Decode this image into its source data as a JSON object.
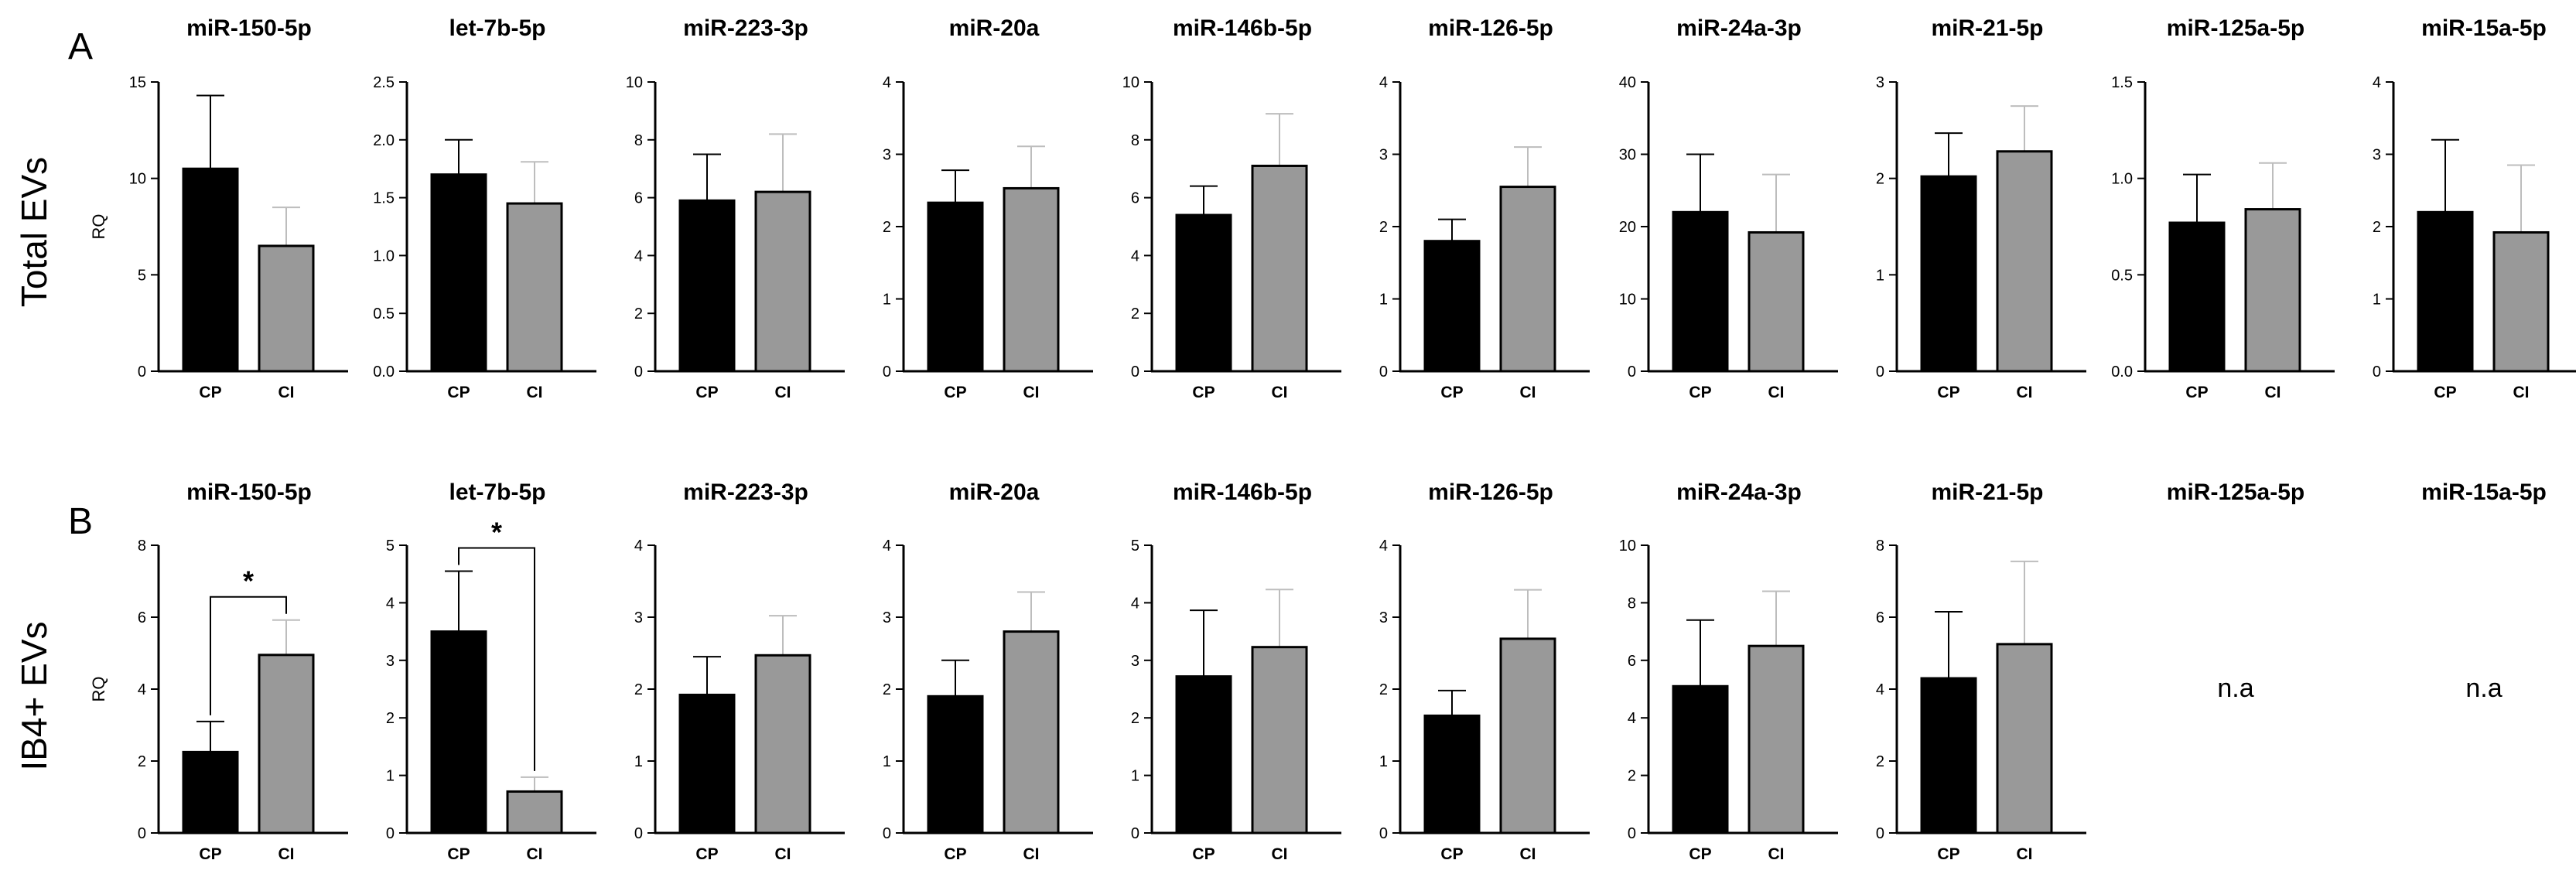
{
  "figure": {
    "panel_labels": [
      "A",
      "B"
    ],
    "row_labels": [
      "Total EVs",
      "IB4+ EVs"
    ],
    "y_axis_label": "RQ",
    "na_text": "n.a"
  },
  "chart_data": [
    {
      "panel": "A",
      "type": "bar",
      "title": "miR-150-5p",
      "categories": [
        "CP",
        "CI"
      ],
      "values": [
        10.5,
        6.5
      ],
      "errors": [
        3.8,
        2.0
      ],
      "colors": [
        "#000000",
        "#999999"
      ],
      "ylim": [
        0,
        15
      ],
      "yticks": [
        0,
        5,
        10,
        15
      ],
      "ytick_labels": [
        "0",
        "5",
        "10",
        "15"
      ],
      "ylabel": "RQ"
    },
    {
      "panel": "A",
      "type": "bar",
      "title": "let-7b-5p",
      "categories": [
        "CP",
        "CI"
      ],
      "values": [
        1.7,
        1.45
      ],
      "errors": [
        0.3,
        0.36
      ],
      "colors": [
        "#000000",
        "#999999"
      ],
      "ylim": [
        0,
        2.5
      ],
      "yticks": [
        0,
        0.5,
        1,
        1.5,
        2,
        2.5
      ],
      "ytick_labels": [
        "0.0",
        "0.5",
        "1.0",
        "1.5",
        "2.0",
        "2.5"
      ],
      "ylabel": ""
    },
    {
      "panel": "A",
      "type": "bar",
      "title": "miR-223-3p",
      "categories": [
        "CP",
        "CI"
      ],
      "values": [
        5.9,
        6.2
      ],
      "errors": [
        1.6,
        2.0
      ],
      "colors": [
        "#000000",
        "#999999"
      ],
      "ylim": [
        0,
        10
      ],
      "yticks": [
        0,
        2,
        4,
        6,
        8,
        10
      ],
      "ytick_labels": [
        "0",
        "2",
        "4",
        "6",
        "8",
        "10"
      ],
      "ylabel": ""
    },
    {
      "panel": "A",
      "type": "bar",
      "title": "miR-20a",
      "categories": [
        "CP",
        "CI"
      ],
      "values": [
        2.33,
        2.53
      ],
      "errors": [
        0.45,
        0.58
      ],
      "colors": [
        "#000000",
        "#999999"
      ],
      "ylim": [
        0,
        4
      ],
      "yticks": [
        0,
        1,
        2,
        3,
        4
      ],
      "ytick_labels": [
        "0",
        "1",
        "2",
        "3",
        "4"
      ],
      "ylabel": ""
    },
    {
      "panel": "A",
      "type": "bar",
      "title": "miR-146b-5p",
      "categories": [
        "CP",
        "CI"
      ],
      "values": [
        5.4,
        7.1
      ],
      "errors": [
        1.0,
        1.8
      ],
      "colors": [
        "#000000",
        "#999999"
      ],
      "ylim": [
        0,
        10
      ],
      "yticks": [
        0,
        2,
        4,
        6,
        8,
        10
      ],
      "ytick_labels": [
        "0",
        "2",
        "4",
        "6",
        "8",
        "10"
      ],
      "ylabel": ""
    },
    {
      "panel": "A",
      "type": "bar",
      "title": "miR-126-5p",
      "categories": [
        "CP",
        "CI"
      ],
      "values": [
        1.8,
        2.55
      ],
      "errors": [
        0.3,
        0.55
      ],
      "colors": [
        "#000000",
        "#999999"
      ],
      "ylim": [
        0,
        4
      ],
      "yticks": [
        0,
        1,
        2,
        3,
        4
      ],
      "ytick_labels": [
        "0",
        "1",
        "2",
        "3",
        "4"
      ],
      "ylabel": ""
    },
    {
      "panel": "A",
      "type": "bar",
      "title": "miR-24a-3p",
      "categories": [
        "CP",
        "CI"
      ],
      "values": [
        22.0,
        19.2
      ],
      "errors": [
        8.0,
        8.0
      ],
      "colors": [
        "#000000",
        "#999999"
      ],
      "ylim": [
        0,
        40
      ],
      "yticks": [
        0,
        10,
        20,
        30,
        40
      ],
      "ytick_labels": [
        "0",
        "10",
        "20",
        "30",
        "40"
      ],
      "ylabel": ""
    },
    {
      "panel": "A",
      "type": "bar",
      "title": "miR-21-5p",
      "categories": [
        "CP",
        "CI"
      ],
      "values": [
        2.02,
        2.28
      ],
      "errors": [
        0.45,
        0.47
      ],
      "colors": [
        "#000000",
        "#999999"
      ],
      "ylim": [
        0,
        3
      ],
      "yticks": [
        0,
        1,
        2,
        3
      ],
      "ytick_labels": [
        "0",
        "1",
        "2",
        "3"
      ],
      "ylabel": ""
    },
    {
      "panel": "A",
      "type": "bar",
      "title": "miR-125a-5p",
      "categories": [
        "CP",
        "CI"
      ],
      "values": [
        0.77,
        0.84
      ],
      "errors": [
        0.25,
        0.24
      ],
      "colors": [
        "#000000",
        "#999999"
      ],
      "ylim": [
        0,
        1.5
      ],
      "yticks": [
        0,
        0.5,
        1,
        1.5
      ],
      "ytick_labels": [
        "0.0",
        "0.5",
        "1.0",
        "1.5"
      ],
      "ylabel": ""
    },
    {
      "panel": "A",
      "type": "bar",
      "title": "miR-15a-5p",
      "categories": [
        "CP",
        "CI"
      ],
      "values": [
        2.2,
        1.92
      ],
      "errors": [
        1.0,
        0.93
      ],
      "colors": [
        "#000000",
        "#999999"
      ],
      "ylim": [
        0,
        4
      ],
      "yticks": [
        0,
        1,
        2,
        3,
        4
      ],
      "ytick_labels": [
        "0",
        "1",
        "2",
        "3",
        "4"
      ],
      "ylabel": ""
    },
    {
      "panel": "B",
      "type": "bar",
      "title": "miR-150-5p",
      "categories": [
        "CP",
        "CI"
      ],
      "values": [
        2.25,
        4.95
      ],
      "errors": [
        0.85,
        0.97
      ],
      "colors": [
        "#000000",
        "#999999"
      ],
      "ylim": [
        0,
        8
      ],
      "yticks": [
        0,
        2,
        4,
        6,
        8
      ],
      "ytick_labels": [
        "0",
        "2",
        "4",
        "6",
        "8"
      ],
      "ylabel": "RQ",
      "significance": "*"
    },
    {
      "panel": "B",
      "type": "bar",
      "title": "let-7b-5p",
      "categories": [
        "CP",
        "CI"
      ],
      "values": [
        3.5,
        0.72
      ],
      "errors": [
        1.05,
        0.25
      ],
      "colors": [
        "#000000",
        "#999999"
      ],
      "ylim": [
        0,
        5
      ],
      "yticks": [
        0,
        1,
        2,
        3,
        4,
        5
      ],
      "ytick_labels": [
        "0",
        "1",
        "2",
        "3",
        "4",
        "5"
      ],
      "ylabel": "",
      "significance": "*"
    },
    {
      "panel": "B",
      "type": "bar",
      "title": "miR-223-3p",
      "categories": [
        "CP",
        "CI"
      ],
      "values": [
        1.92,
        2.47
      ],
      "errors": [
        0.53,
        0.55
      ],
      "colors": [
        "#000000",
        "#999999"
      ],
      "ylim": [
        0,
        4
      ],
      "yticks": [
        0,
        1,
        2,
        3,
        4
      ],
      "ytick_labels": [
        "0",
        "1",
        "2",
        "3",
        "4"
      ],
      "ylabel": ""
    },
    {
      "panel": "B",
      "type": "bar",
      "title": "miR-20a",
      "categories": [
        "CP",
        "CI"
      ],
      "values": [
        1.9,
        2.8
      ],
      "errors": [
        0.5,
        0.55
      ],
      "colors": [
        "#000000",
        "#999999"
      ],
      "ylim": [
        0,
        4
      ],
      "yticks": [
        0,
        1,
        2,
        3,
        4
      ],
      "ytick_labels": [
        "0",
        "1",
        "2",
        "3",
        "4"
      ],
      "ylabel": ""
    },
    {
      "panel": "B",
      "type": "bar",
      "title": "miR-146b-5p",
      "categories": [
        "CP",
        "CI"
      ],
      "values": [
        2.72,
        3.23
      ],
      "errors": [
        1.15,
        1.0
      ],
      "colors": [
        "#000000",
        "#999999"
      ],
      "ylim": [
        0,
        5
      ],
      "yticks": [
        0,
        1,
        2,
        3,
        4,
        5
      ],
      "ytick_labels": [
        "0",
        "1",
        "2",
        "3",
        "4",
        "5"
      ],
      "ylabel": ""
    },
    {
      "panel": "B",
      "type": "bar",
      "title": "miR-126-5p",
      "categories": [
        "CP",
        "CI"
      ],
      "values": [
        1.63,
        2.7
      ],
      "errors": [
        0.35,
        0.68
      ],
      "colors": [
        "#000000",
        "#999999"
      ],
      "ylim": [
        0,
        4
      ],
      "yticks": [
        0,
        1,
        2,
        3,
        4
      ],
      "ytick_labels": [
        "0",
        "1",
        "2",
        "3",
        "4"
      ],
      "ylabel": ""
    },
    {
      "panel": "B",
      "type": "bar",
      "title": "miR-24a-3p",
      "categories": [
        "CP",
        "CI"
      ],
      "values": [
        5.1,
        6.5
      ],
      "errors": [
        2.3,
        1.9
      ],
      "colors": [
        "#000000",
        "#999999"
      ],
      "ylim": [
        0,
        10
      ],
      "yticks": [
        0,
        2,
        4,
        6,
        8,
        10
      ],
      "ytick_labels": [
        "0",
        "2",
        "4",
        "6",
        "8",
        "10"
      ],
      "ylabel": ""
    },
    {
      "panel": "B",
      "type": "bar",
      "title": "miR-21-5p",
      "categories": [
        "CP",
        "CI"
      ],
      "values": [
        4.3,
        5.25
      ],
      "errors": [
        1.85,
        2.3
      ],
      "colors": [
        "#000000",
        "#999999"
      ],
      "ylim": [
        0,
        8
      ],
      "yticks": [
        0,
        2,
        4,
        6,
        8
      ],
      "ytick_labels": [
        "0",
        "2",
        "4",
        "6",
        "8"
      ],
      "ylabel": ""
    },
    {
      "panel": "B",
      "type": "na",
      "title": "miR-125a-5p",
      "text": "n.a"
    },
    {
      "panel": "B",
      "type": "na",
      "title": "miR-15a-5p",
      "text": "n.a"
    }
  ]
}
